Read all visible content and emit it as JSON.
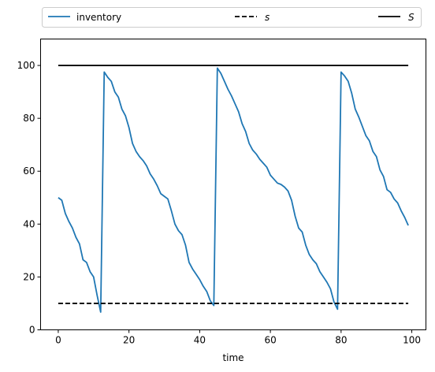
{
  "chart_data": {
    "type": "line",
    "title": "",
    "xlabel": "time",
    "ylabel": "",
    "xlim": [
      -5,
      104
    ],
    "ylim": [
      0,
      110
    ],
    "xticks": [
      0,
      20,
      40,
      60,
      80,
      100
    ],
    "yticks": [
      0,
      20,
      40,
      60,
      80,
      100
    ],
    "grid": false,
    "legend_position": "top, above plot, spanning width",
    "series": [
      {
        "name": "inventory",
        "color": "#1f77b4",
        "style": "solid",
        "x": [
          0,
          1,
          2,
          3,
          4,
          5,
          6,
          7,
          8,
          9,
          10,
          11,
          12,
          13,
          14,
          15,
          16,
          17,
          18,
          19,
          20,
          21,
          22,
          23,
          24,
          25,
          26,
          27,
          28,
          29,
          30,
          31,
          32,
          33,
          34,
          35,
          36,
          37,
          38,
          39,
          40,
          41,
          42,
          43,
          44,
          45,
          46,
          47,
          48,
          49,
          50,
          51,
          52,
          53,
          54,
          55,
          56,
          57,
          58,
          59,
          60,
          61,
          62,
          63,
          64,
          65,
          66,
          67,
          68,
          69,
          70,
          71,
          72,
          73,
          74,
          75,
          76,
          77,
          78,
          79,
          80,
          81,
          82,
          83,
          84,
          85,
          86,
          87,
          88,
          89,
          90,
          91,
          92,
          93,
          94,
          95,
          96,
          97,
          98,
          99
        ],
        "values": [
          50,
          49,
          44,
          41,
          38.5,
          35,
          32.5,
          26.5,
          25.5,
          22,
          20,
          13,
          6.7,
          97.5,
          95.5,
          94,
          90,
          88,
          83.5,
          81,
          76.5,
          70.5,
          67.5,
          65.5,
          64,
          62,
          59,
          57,
          54.5,
          51.5,
          50.5,
          49.5,
          45,
          40,
          37.5,
          36,
          32,
          25.5,
          23,
          21,
          19,
          16.5,
          14.5,
          11,
          9.2,
          99,
          97,
          94,
          91,
          88.5,
          85.5,
          82.5,
          78,
          75,
          70.5,
          68,
          66.5,
          64.5,
          63,
          61.5,
          58.5,
          57,
          55.5,
          55,
          54,
          52.5,
          49,
          43,
          38.5,
          37,
          32,
          28.5,
          26.5,
          25,
          22,
          20,
          18,
          15.5,
          10.5,
          7.8,
          97.5,
          96,
          94,
          89.5,
          83.5,
          80.5,
          77,
          73.5,
          71.5,
          67.5,
          65.5,
          60.5,
          58,
          53,
          52,
          49.5,
          48,
          45,
          42.5,
          39.5
        ]
      },
      {
        "name": "s",
        "color": "#000000",
        "style": "dashed",
        "x": [
          0,
          99
        ],
        "values": [
          10,
          10
        ]
      },
      {
        "name": "S",
        "color": "#000000",
        "style": "solid",
        "x": [
          0,
          99
        ],
        "values": [
          100,
          100
        ]
      }
    ]
  }
}
